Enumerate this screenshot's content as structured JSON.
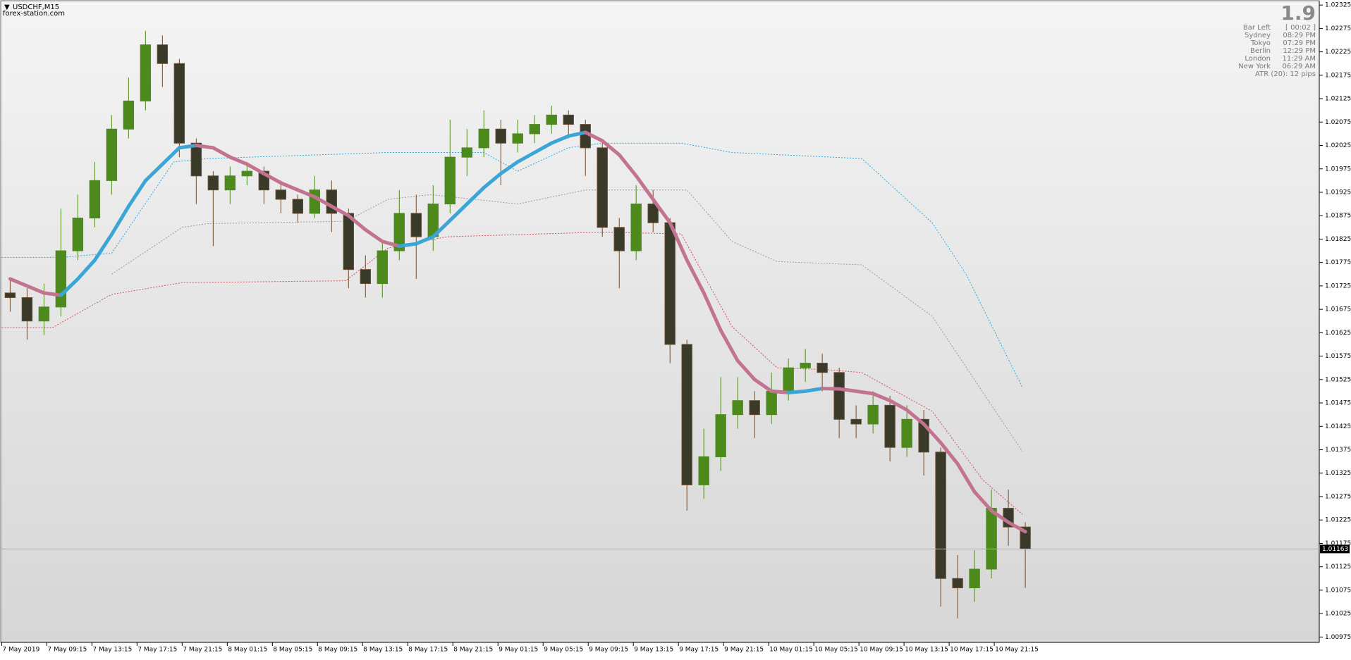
{
  "header": {
    "symbol": "USDCHF,M15",
    "site": "forex-station.com"
  },
  "info_panel": {
    "big_value": "1.9",
    "rows": [
      [
        "Bar Left",
        "[ 00:02 ]"
      ],
      [
        "Sydney",
        "08:29 PM"
      ],
      [
        "Tokyo",
        "07:29 PM"
      ],
      [
        "Berlin",
        "12:29 PM"
      ],
      [
        "London",
        "11:29 AM"
      ],
      [
        "New York",
        "06:29 AM"
      ]
    ],
    "atr": "ATR (20): 12 pips"
  },
  "chart_data": {
    "type": "candlestick",
    "xlim": [
      -0.6,
      467
    ],
    "xticks": [
      {
        "value": 0,
        "label": "7 May 2019"
      },
      {
        "value": 16,
        "label": "7 May 09:15"
      },
      {
        "value": 32,
        "label": "7 May 13:15"
      },
      {
        "value": 48,
        "label": "7 May 17:15"
      },
      {
        "value": 64,
        "label": "7 May 21:15"
      },
      {
        "value": 80,
        "label": "8 May 01:15"
      },
      {
        "value": 96,
        "label": "8 May 05:15"
      },
      {
        "value": 112,
        "label": "8 May 09:15"
      },
      {
        "value": 128,
        "label": "8 May 13:15"
      },
      {
        "value": 144,
        "label": "8 May 17:15"
      },
      {
        "value": 160,
        "label": "8 May 21:15"
      },
      {
        "value": 176,
        "label": "9 May 01:15"
      },
      {
        "value": 192,
        "label": "9 May 05:15"
      },
      {
        "value": 208,
        "label": "9 May 09:15"
      },
      {
        "value": 224,
        "label": "9 May 13:15"
      },
      {
        "value": 240,
        "label": "9 May 17:15"
      },
      {
        "value": 256,
        "label": "9 May 21:15"
      },
      {
        "value": 272,
        "label": "10 May 01:15"
      },
      {
        "value": 288,
        "label": "10 May 05:15"
      },
      {
        "value": 304,
        "label": "10 May 09:15"
      },
      {
        "value": 320,
        "label": "10 May 13:15"
      },
      {
        "value": 336,
        "label": "10 May 17:15"
      },
      {
        "value": 352,
        "label": "10 May 21:15"
      }
    ],
    "ylim": [
      1.00965,
      1.02335
    ],
    "yticks": [
      1.02325,
      1.02275,
      1.02225,
      1.02175,
      1.02125,
      1.02075,
      1.02025,
      1.01975,
      1.01925,
      1.01875,
      1.01825,
      1.01775,
      1.01725,
      1.01675,
      1.01625,
      1.01575,
      1.01525,
      1.01475,
      1.01425,
      1.01375,
      1.01325,
      1.01275,
      1.01225,
      1.01175,
      1.01125,
      1.01075,
      1.01025,
      1.00975
    ],
    "up_color": "#4c8a1c",
    "down_color": "#6e4a2c",
    "x": [
      3,
      9,
      15,
      21,
      27,
      33,
      39,
      45,
      51,
      57,
      63,
      69,
      75,
      81,
      87,
      93,
      99,
      105,
      111,
      117,
      123,
      129,
      135,
      141,
      147,
      153,
      159,
      165,
      171,
      177,
      183,
      189,
      195,
      201,
      207,
      213,
      219,
      225,
      231,
      237,
      243,
      249,
      255,
      261,
      267,
      273,
      279,
      285,
      291,
      297,
      303,
      309,
      315,
      321,
      327,
      333,
      339,
      345,
      351,
      357,
      363
    ],
    "open": [
      1.0171,
      1.017,
      1.0165,
      1.0168,
      1.018,
      1.0187,
      1.0195,
      1.0206,
      1.0212,
      1.0224,
      1.022,
      1.0203,
      1.0196,
      1.0193,
      1.0196,
      1.0197,
      1.0193,
      1.0191,
      1.0188,
      1.0193,
      1.0188,
      1.0176,
      1.0173,
      1.018,
      1.0188,
      1.0183,
      1.019,
      1.02,
      1.0202,
      1.0206,
      1.0203,
      1.0205,
      1.0207,
      1.0209,
      1.0207,
      1.0202,
      1.0185,
      1.018,
      1.019,
      1.0186,
      1.016,
      1.013,
      1.0136,
      1.0145,
      1.0148,
      1.0145,
      1.015,
      1.0155,
      1.0156,
      1.0154,
      1.0144,
      1.0143,
      1.0147,
      1.0138,
      1.0144,
      1.0137,
      1.011,
      1.0108,
      1.0112,
      1.0125,
      1.0121
    ],
    "high": [
      1.0174,
      1.0172,
      1.0173,
      1.0189,
      1.0192,
      1.0199,
      1.0209,
      1.0217,
      1.0227,
      1.0226,
      1.0221,
      1.0204,
      1.0197,
      1.0198,
      1.0199,
      1.0198,
      1.0195,
      1.0192,
      1.0196,
      1.0195,
      1.0189,
      1.0179,
      1.0182,
      1.0193,
      1.0192,
      1.0194,
      1.0208,
      1.0206,
      1.021,
      1.0208,
      1.0208,
      1.0209,
      1.0211,
      1.021,
      1.0208,
      1.0203,
      1.0187,
      1.0194,
      1.0193,
      1.0187,
      1.0161,
      1.0142,
      1.0153,
      1.0153,
      1.015,
      1.0154,
      1.0157,
      1.0159,
      1.0158,
      1.0155,
      1.0147,
      1.015,
      1.0149,
      1.0147,
      1.0146,
      1.0138,
      1.0115,
      1.0116,
      1.0129,
      1.0129,
      1.0122
    ],
    "low": [
      1.0167,
      1.0161,
      1.0162,
      1.0166,
      1.0178,
      1.0185,
      1.0192,
      1.0204,
      1.021,
      1.0215,
      1.02,
      1.019,
      1.0181,
      1.019,
      1.0194,
      1.019,
      1.0188,
      1.0186,
      1.0187,
      1.0184,
      1.0172,
      1.017,
      1.017,
      1.0178,
      1.0174,
      1.018,
      1.0188,
      1.0196,
      1.02,
      1.0194,
      1.0201,
      1.0203,
      1.0205,
      1.0204,
      1.0196,
      1.0183,
      1.0172,
      1.0178,
      1.0184,
      1.0156,
      1.01245,
      1.0127,
      1.0133,
      1.0142,
      1.014,
      1.0143,
      1.0148,
      1.0152,
      1.015,
      1.014,
      1.014,
      1.0141,
      1.0135,
      1.0136,
      1.0132,
      1.0104,
      1.01015,
      1.0105,
      1.011,
      1.0117,
      1.0108
    ],
    "close": [
      1.017,
      1.0165,
      1.0168,
      1.018,
      1.0187,
      1.0195,
      1.0206,
      1.0212,
      1.0224,
      1.022,
      1.0203,
      1.0196,
      1.0193,
      1.0196,
      1.0197,
      1.0193,
      1.0191,
      1.0188,
      1.0193,
      1.0188,
      1.0176,
      1.0173,
      1.018,
      1.0188,
      1.0183,
      1.019,
      1.02,
      1.0202,
      1.0206,
      1.0203,
      1.0205,
      1.0207,
      1.0209,
      1.0207,
      1.0202,
      1.0185,
      1.018,
      1.019,
      1.0186,
      1.016,
      1.013,
      1.0136,
      1.0145,
      1.0148,
      1.0145,
      1.015,
      1.0155,
      1.0156,
      1.0154,
      1.0144,
      1.0143,
      1.0147,
      1.0138,
      1.0144,
      1.0137,
      1.011,
      1.0108,
      1.0112,
      1.0125,
      1.0121,
      1.01163
    ],
    "current_price": 1.01163,
    "series": [
      {
        "style": "ma",
        "up_color": "#3ba6d6",
        "down_color": "#c2738f",
        "x": [
          3,
          9,
          15,
          21,
          27,
          33,
          39,
          45,
          51,
          57,
          63,
          69,
          75,
          81,
          87,
          93,
          99,
          105,
          111,
          117,
          123,
          129,
          135,
          141,
          147,
          153,
          159,
          165,
          171,
          177,
          183,
          189,
          195,
          201,
          207,
          213,
          219,
          225,
          231,
          237,
          243,
          249,
          255,
          261,
          267,
          273,
          279,
          285,
          291,
          297,
          303,
          309,
          315,
          321,
          327,
          333,
          339,
          345,
          351,
          357,
          363
        ],
        "values": [
          1.0174,
          1.01725,
          1.0171,
          1.01705,
          1.0174,
          1.0178,
          1.01835,
          1.01895,
          1.0195,
          1.01985,
          1.0202,
          1.02025,
          1.0202,
          1.02,
          1.01985,
          1.01965,
          1.01945,
          1.0193,
          1.01915,
          1.01895,
          1.01875,
          1.01845,
          1.0182,
          1.0181,
          1.01815,
          1.0183,
          1.01865,
          1.019,
          1.01935,
          1.01965,
          1.0199,
          1.0201,
          1.0203,
          1.02045,
          1.02053,
          1.02035,
          1.02005,
          1.0196,
          1.0191,
          1.0186,
          1.0178,
          1.0171,
          1.0163,
          1.01565,
          1.01525,
          1.015,
          1.01497,
          1.015,
          1.01506,
          1.01505,
          1.015,
          1.01495,
          1.0148,
          1.0146,
          1.0143,
          1.0139,
          1.01345,
          1.01285,
          1.01245,
          1.0122,
          1.012
        ]
      },
      {
        "style": "dotted",
        "color": "#2aa8e0",
        "x": [
          0,
          21,
          39,
          61,
          73,
          137,
          171,
          183,
          201,
          213,
          241,
          259,
          305,
          330,
          342,
          362
        ],
        "values": [
          1.01786,
          1.01786,
          1.01795,
          1.0199,
          1.01997,
          1.0201,
          1.0201,
          1.0197,
          1.0202,
          1.0203,
          1.0203,
          1.0201,
          1.01997,
          1.0186,
          1.0175,
          1.01508
        ]
      },
      {
        "style": "dotted",
        "color": "#9a9a9a",
        "x": [
          39,
          64,
          73,
          122,
          137,
          152,
          183,
          207,
          243,
          259,
          275,
          305,
          330,
          362
        ],
        "values": [
          1.0175,
          1.0185,
          1.01858,
          1.01863,
          1.0191,
          1.0192,
          1.019,
          1.0193,
          1.0193,
          1.0182,
          1.01777,
          1.0177,
          1.0166,
          1.01371
        ]
      },
      {
        "style": "dotted",
        "color": "#d0505a",
        "x": [
          0,
          18,
          39,
          64,
          122,
          137,
          158,
          213,
          241,
          259,
          275,
          293,
          305,
          330,
          348,
          362
        ],
        "values": [
          1.01636,
          1.01636,
          1.01707,
          1.01732,
          1.01736,
          1.01806,
          1.0183,
          1.0184,
          1.01836,
          1.01638,
          1.0155,
          1.01546,
          1.0154,
          1.01457,
          1.0131,
          1.01237
        ]
      }
    ]
  }
}
